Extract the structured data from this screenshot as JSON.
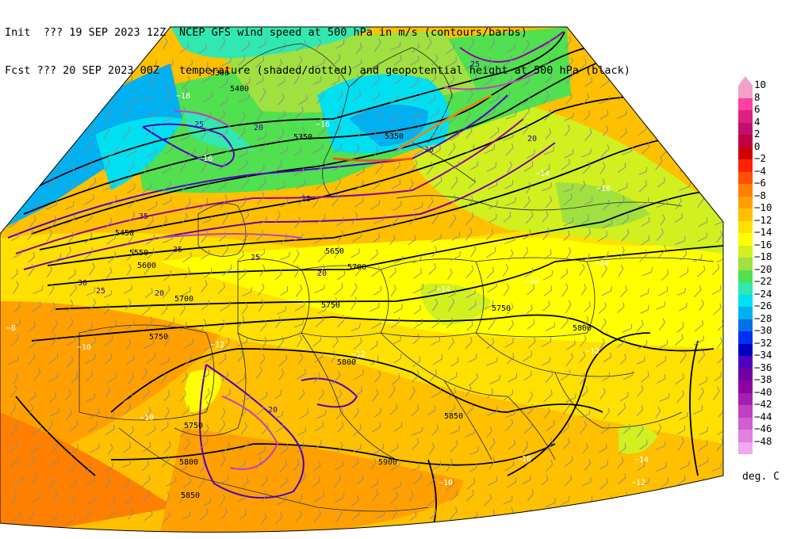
{
  "header": {
    "init_label": "Init  ??? 19 SEP 2023 12Z",
    "fcst_label": "Fcst ??? 20 SEP 2023 00Z",
    "title_line1": "NCEP GFS wind speed at 500 hPa in m/s (contours/barbs)",
    "title_line2": "temperature (shaded/dotted) and geopotential height at 500 hPa (black)"
  },
  "legend": {
    "unit": "deg. C",
    "colors": {
      "10": "#f4a0c8",
      "8": "#ff40a0",
      "6": "#e02080",
      "4": "#c01070",
      "2": "#c00040",
      "0": "#d00000",
      "-2": "#ff2000",
      "-4": "#ff5000",
      "-6": "#ff8000",
      "-8": "#ffa000",
      "-10": "#ffc000",
      "-12": "#ffe000",
      "-14": "#ffff00",
      "-16": "#d0f020",
      "-18": "#a0e040",
      "-20": "#50e050",
      "-22": "#30e8b0",
      "-24": "#00e0f0",
      "-26": "#00b0f0",
      "-28": "#0070e8",
      "-30": "#0030f0",
      "-32": "#0000c0",
      "-34": "#5000c0",
      "-36": "#7000a0",
      "-38": "#9000a0",
      "-40": "#a020b0",
      "-42": "#c040c0",
      "-44": "#d060d0",
      "-46": "#e080e0",
      "-48": "#f0a8f0"
    },
    "items": [
      {
        "label": "10",
        "color": "#f4a0c8"
      },
      {
        "label": "8",
        "color": "#ff40a0"
      },
      {
        "label": "6",
        "color": "#e02080"
      },
      {
        "label": "4",
        "color": "#c01070"
      },
      {
        "label": "2",
        "color": "#c00040"
      },
      {
        "label": "0",
        "color": "#d00000"
      },
      {
        "label": "−2",
        "color": "#ff2000"
      },
      {
        "label": "−4",
        "color": "#ff5000"
      },
      {
        "label": "−6",
        "color": "#ff8000"
      },
      {
        "label": "−8",
        "color": "#ffa000"
      },
      {
        "label": "−10",
        "color": "#ffc000"
      },
      {
        "label": "−12",
        "color": "#ffe000"
      },
      {
        "label": "−14",
        "color": "#ffff00"
      },
      {
        "label": "−16",
        "color": "#d0f020"
      },
      {
        "label": "−18",
        "color": "#a0e040"
      },
      {
        "label": "−20",
        "color": "#50e050"
      },
      {
        "label": "−22",
        "color": "#30e8b0"
      },
      {
        "label": "−24",
        "color": "#00e0f0"
      },
      {
        "label": "−26",
        "color": "#00b0f0"
      },
      {
        "label": "−28",
        "color": "#0070e8"
      },
      {
        "label": "−30",
        "color": "#0030f0"
      },
      {
        "label": "−32",
        "color": "#0000c0"
      },
      {
        "label": "−34",
        "color": "#5000c0"
      },
      {
        "label": "−36",
        "color": "#7000a0"
      },
      {
        "label": "−38",
        "color": "#9000a0"
      },
      {
        "label": "−40",
        "color": "#a020b0"
      },
      {
        "label": "−42",
        "color": "#c040c0"
      },
      {
        "label": "−44",
        "color": "#d060d0"
      },
      {
        "label": "−46",
        "color": "#e080e0"
      },
      {
        "label": "−48",
        "color": "#f0a8f0"
      }
    ]
  },
  "height_contours": {
    "h5300": "5300",
    "h5350a": "5350",
    "h5350b": "5350",
    "h5350c": "5350",
    "h5400": "5400",
    "h5450": "5450",
    "h5550": "5550",
    "h5600": "5600",
    "h5650": "5650",
    "h5700a": "5700",
    "h5700b": "5700",
    "h5750a": "5750",
    "h5750b": "5750",
    "h5750c": "5750",
    "h5750d": "5750",
    "h5800a": "5800",
    "h5800b": "5800",
    "h5800c": "5800",
    "h5850a": "5850",
    "h5850b": "5850",
    "h5900": "5900",
    "h5550b": "5550"
  },
  "wind_contours": {
    "w20a": "20",
    "w20b": "20",
    "w20c": "20",
    "w20d": "20",
    "w20e": "20",
    "w25a": "25",
    "w25b": "25",
    "w25c": "25",
    "w25d": "25",
    "w25e": "25",
    "w30a": "30",
    "w30b": "30",
    "w35a": "35",
    "w35b": "35"
  },
  "temp_labels": {
    "t16a": "−16",
    "t16b": "−16",
    "t16c": "−16",
    "t14a": "−14",
    "t14b": "−14",
    "t14c": "−14",
    "t14d": "−14",
    "t12a": "−12",
    "t12b": "−12",
    "t12c": "−12",
    "t12d": "−12",
    "t12e": "−12",
    "t10a": "−10",
    "t10b": "−10",
    "t10c": "−10",
    "t10d": "−10",
    "t18a": "−18",
    "t8a": "−8"
  }
}
